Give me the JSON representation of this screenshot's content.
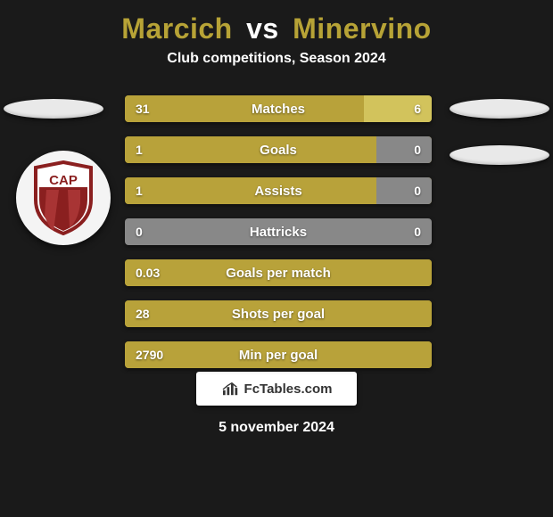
{
  "title": {
    "player1": "Marcich",
    "vs": "vs",
    "player2": "Minervino"
  },
  "subtitle": "Club competitions, Season 2024",
  "colors": {
    "bar_base": "#a08b24",
    "bar_left": "#b8a23a",
    "bar_right": "#d2c35c",
    "neutral": "#888888",
    "background": "#1a1a1a"
  },
  "badge_text": "CAP",
  "stats": [
    {
      "label": "Matches",
      "left_val": "31",
      "right_val": "6",
      "left_pct": 78,
      "right_pct": 22,
      "has_both": true
    },
    {
      "label": "Goals",
      "left_val": "1",
      "right_val": "0",
      "left_pct": 82,
      "right_pct": 18,
      "has_both": true,
      "right_neutral": true
    },
    {
      "label": "Assists",
      "left_val": "1",
      "right_val": "0",
      "left_pct": 82,
      "right_pct": 18,
      "has_both": true,
      "right_neutral": true
    },
    {
      "label": "Hattricks",
      "left_val": "0",
      "right_val": "0",
      "left_pct": 0,
      "right_pct": 0,
      "has_both": true,
      "all_neutral": true
    },
    {
      "label": "Goals per match",
      "left_val": "0.03",
      "right_val": "",
      "left_pct": 100,
      "right_pct": 0,
      "has_both": false
    },
    {
      "label": "Shots per goal",
      "left_val": "28",
      "right_val": "",
      "left_pct": 100,
      "right_pct": 0,
      "has_both": false
    },
    {
      "label": "Min per goal",
      "left_val": "2790",
      "right_val": "",
      "left_pct": 100,
      "right_pct": 0,
      "has_both": false
    }
  ],
  "footer_brand": "FcTables.com",
  "date": "5 november 2024"
}
